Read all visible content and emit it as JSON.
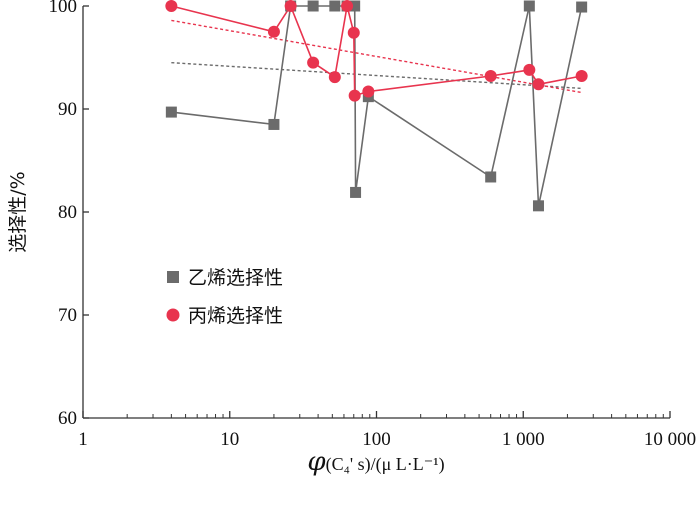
{
  "chart_data": {
    "type": "scatter",
    "x_scale": "log",
    "xlim": [
      1,
      10000
    ],
    "ylim": [
      60,
      100
    ],
    "x_ticks": [
      {
        "value": 1,
        "label": "1"
      },
      {
        "value": 10,
        "label": "10"
      },
      {
        "value": 100,
        "label": "100"
      },
      {
        "value": 1000,
        "label": "1 000"
      },
      {
        "value": 10000,
        "label": "10 000"
      }
    ],
    "y_ticks": [
      {
        "value": 60,
        "label": "60"
      },
      {
        "value": 70,
        "label": "70"
      },
      {
        "value": 80,
        "label": "80"
      },
      {
        "value": 90,
        "label": "90"
      },
      {
        "value": 100,
        "label": "100"
      }
    ],
    "xlabel": {
      "phi": "φ",
      "rest": "(C₄' s)/(μ L·L⁻¹)"
    },
    "ylabel": "选择性/%",
    "legend_position": "center-left",
    "series": [
      {
        "name": "乙烯选择性",
        "color": "#6b6b6b",
        "marker": "square",
        "x": [
          4,
          20,
          26,
          37,
          52,
          63,
          71,
          72,
          88,
          600,
          1100,
          1270,
          2500
        ],
        "y": [
          89.7,
          88.5,
          100,
          100,
          100,
          100,
          100,
          81.9,
          91.2,
          83.4,
          100,
          80.6,
          99.9
        ],
        "trend": {
          "x": [
            4,
            2500
          ],
          "y": [
            94.5,
            92.0
          ]
        }
      },
      {
        "name": "丙烯选择性",
        "color": "#e8344e",
        "marker": "circle",
        "x": [
          4,
          20,
          26,
          37,
          52,
          63,
          70,
          71,
          88,
          600,
          1100,
          1270,
          2500
        ],
        "y": [
          100,
          97.5,
          100,
          94.5,
          93.1,
          100,
          97.4,
          91.3,
          91.7,
          93.2,
          93.8,
          92.4,
          93.2
        ],
        "trend": {
          "x": [
            4,
            2500
          ],
          "y": [
            98.6,
            91.6
          ]
        }
      }
    ]
  }
}
